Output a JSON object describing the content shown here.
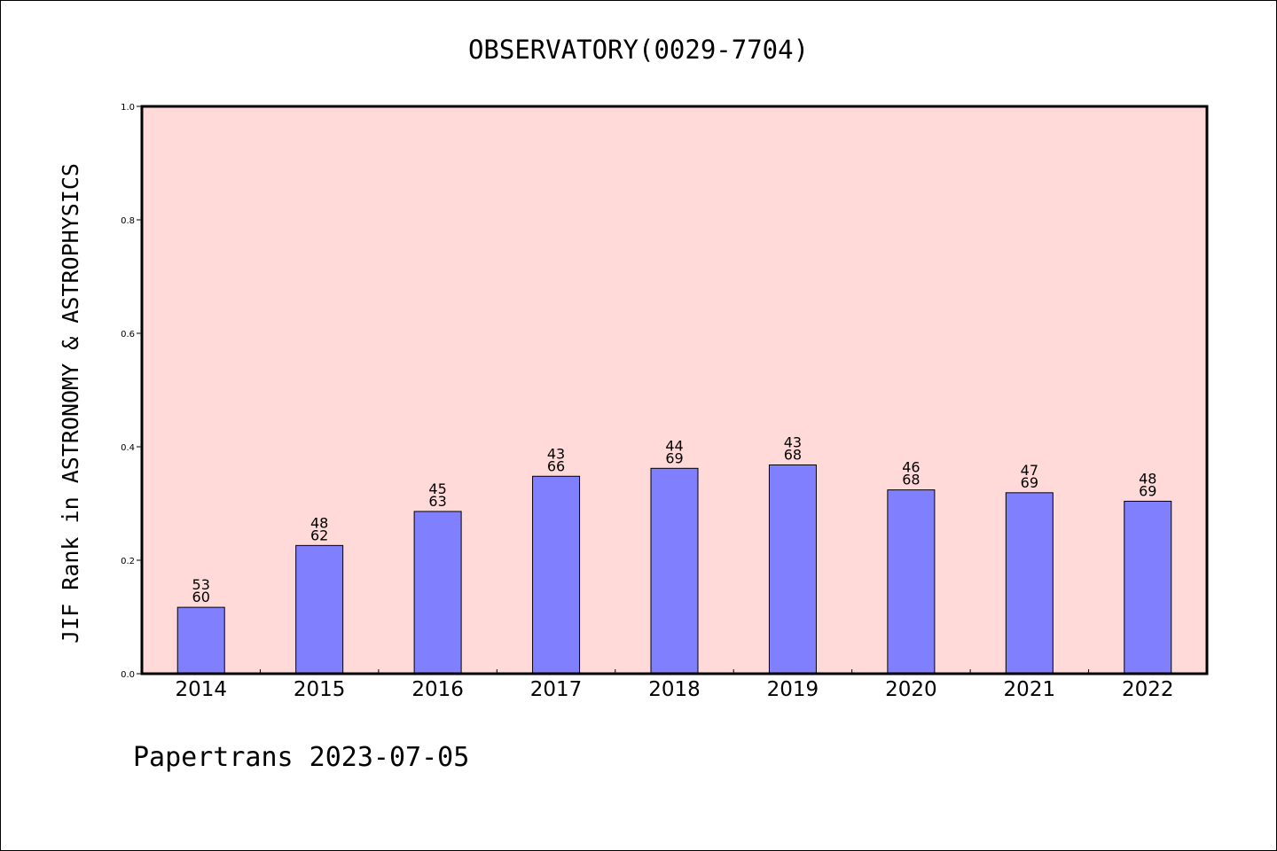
{
  "chart_data": {
    "type": "bar",
    "title": "OBSERVATORY(0029-7704)",
    "ylabel": "JIF Rank in ASTRONOMY & ASTROPHYSICS",
    "xlabel": "",
    "ylim": [
      0,
      1.0
    ],
    "yticks": [
      "0.0",
      "0.2",
      "0.4",
      "0.6",
      "0.8",
      "1.0"
    ],
    "categories": [
      "2014",
      "2015",
      "2016",
      "2017",
      "2018",
      "2019",
      "2020",
      "2021",
      "2022"
    ],
    "values": [
      0.117,
      0.226,
      0.286,
      0.348,
      0.362,
      0.368,
      0.324,
      0.319,
      0.304
    ],
    "rank": [
      "53",
      "48",
      "45",
      "43",
      "44",
      "43",
      "46",
      "47",
      "48"
    ],
    "total": [
      "60",
      "62",
      "63",
      "66",
      "69",
      "68",
      "68",
      "69",
      "69"
    ],
    "grid": false,
    "colors": {
      "plot_background": "#ffdad8",
      "bar_fill": "#8080ff",
      "bar_stroke": "#000000"
    }
  },
  "footer": "Papertrans 2023-07-05"
}
